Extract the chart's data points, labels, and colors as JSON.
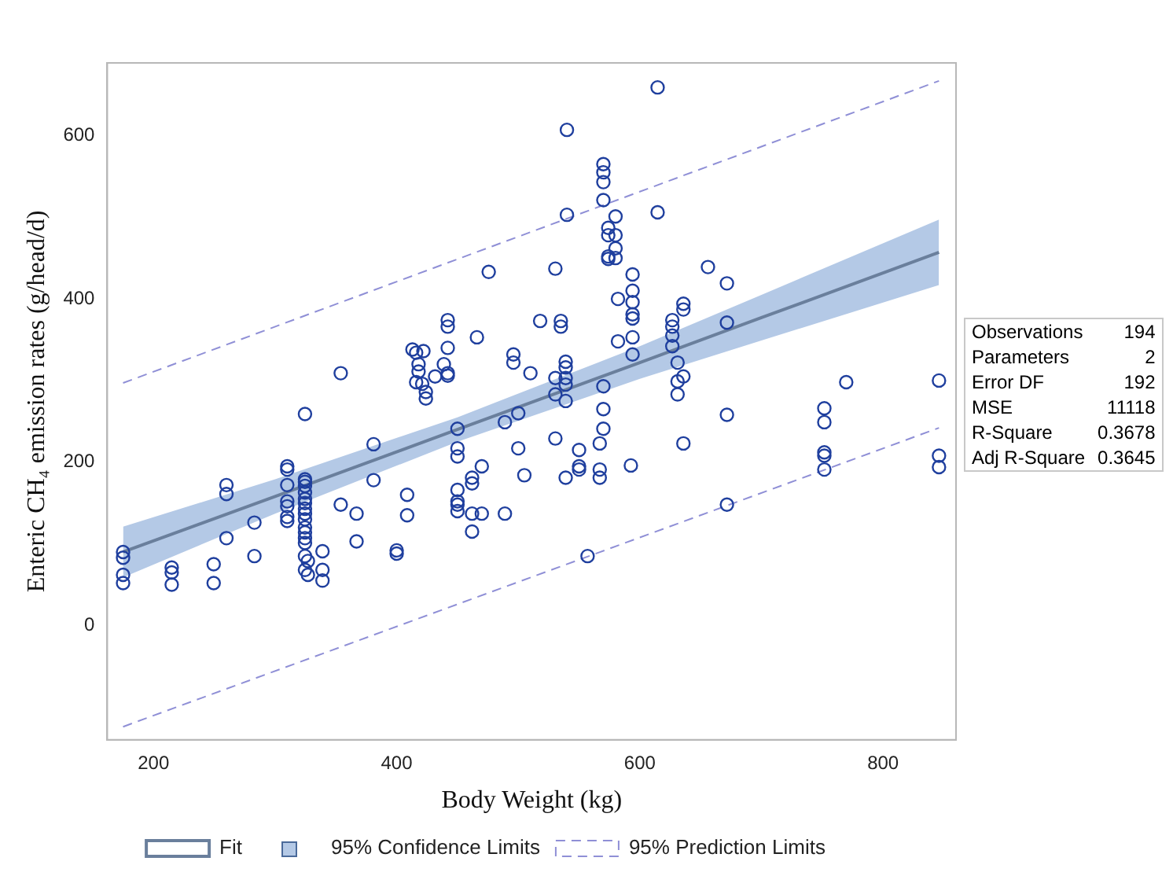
{
  "chart_data": {
    "type": "scatter",
    "xlabel": "Body Weight (kg)",
    "ylabel": "Enteric CH₄ emission rates (g/head/d)",
    "xlim": [
      162,
      860
    ],
    "ylim": [
      -140,
      689
    ],
    "xticks": [
      200,
      400,
      600,
      800
    ],
    "yticks": [
      0,
      200,
      400,
      600
    ],
    "grid": false,
    "legend": "bottom",
    "marker": "circle",
    "series": [
      {
        "color": "#1f3f9e",
        "x": [
          175,
          175,
          175,
          175,
          215,
          215,
          215,
          249.5,
          249.5,
          260,
          260,
          260,
          283,
          283,
          310,
          310,
          310,
          310,
          310,
          310,
          310,
          324.6,
          324.6,
          324.6,
          324.6,
          324.6,
          324.6,
          324.6,
          324.6,
          324.6,
          324.6,
          324.6,
          324.6,
          324.6,
          324.6,
          324.6,
          324.6,
          327,
          327,
          339,
          339,
          339,
          354,
          354,
          367,
          367,
          381,
          381,
          400,
          400,
          408.6,
          408.6,
          413,
          416,
          422,
          418,
          418,
          416,
          421,
          424,
          424,
          431.6,
          438.8,
          442,
          442,
          442,
          442,
          442,
          450,
          450,
          450,
          450,
          450,
          450,
          450,
          462,
          462,
          462,
          462,
          466,
          470,
          470,
          475.7,
          489,
          489,
          496,
          496,
          500,
          500,
          505,
          510,
          518,
          530.5,
          530.5,
          530.5,
          530.5,
          535,
          535,
          539,
          539,
          539,
          539,
          539,
          539,
          540,
          540,
          550,
          550,
          550,
          557,
          567,
          567,
          567,
          570,
          570,
          570,
          570,
          570,
          570,
          570,
          574,
          574,
          574,
          574,
          580,
          580,
          580,
          580,
          582,
          582,
          592.6,
          594,
          594,
          594,
          594,
          594,
          594,
          594,
          614.6,
          614.6,
          626.7,
          626.7,
          626.7,
          626.7,
          631,
          631,
          631,
          635.8,
          635.8,
          635.8,
          635.8,
          656,
          671.6,
          671.6,
          671.6,
          671.6,
          751.7,
          751.7,
          751.7,
          751.7,
          751.7,
          769.7,
          846,
          846,
          846
        ],
        "values": [
          90,
          83,
          62,
          52,
          71,
          65,
          50,
          75,
          52,
          172,
          161,
          107,
          126,
          85,
          195,
          191,
          172,
          152,
          146,
          133,
          128,
          259,
          179,
          176,
          171,
          163,
          155,
          150,
          143,
          137,
          130,
          120,
          114,
          107,
          101,
          85,
          68,
          79,
          62,
          91,
          68,
          55,
          309,
          148,
          137,
          103,
          222,
          178,
          92,
          88,
          160,
          135,
          338,
          334,
          336,
          320,
          311,
          298,
          296,
          286,
          278,
          305,
          320,
          374,
          366,
          340,
          309,
          306,
          241,
          217,
          207,
          166,
          152,
          148,
          140,
          181,
          174,
          137,
          115,
          353,
          195,
          137,
          433,
          249,
          137,
          332,
          322,
          260,
          217,
          184,
          309,
          373,
          437,
          303,
          283,
          229,
          373,
          366,
          323,
          316,
          303,
          295,
          275,
          181,
          607,
          503,
          215,
          195,
          191,
          85,
          223,
          191,
          181,
          565,
          555,
          543,
          521,
          293,
          265,
          241,
          487,
          478,
          452,
          449,
          501,
          478,
          462,
          450,
          400,
          348,
          196,
          430,
          410,
          396,
          381,
          376,
          353,
          332,
          659,
          506,
          374,
          366,
          355,
          342,
          322,
          299,
          283,
          394,
          387,
          305,
          223,
          439,
          419,
          371,
          258,
          148,
          266,
          249,
          212,
          208,
          191,
          298,
          300,
          208,
          194
        ]
      },
      {
        "type": "line",
        "name": "Fit",
        "color": "#6a7f9c",
        "line_style": "solid",
        "marker": "none",
        "x": [
          175,
          300,
          450,
          600,
          700,
          846
        ],
        "values": [
          90,
          158,
          240,
          322,
          377,
          457
        ],
        "lower": [
          59,
          137,
          225,
          302,
          349,
          417
        ],
        "upper": [
          121,
          179,
          255,
          342,
          405,
          497
        ]
      },
      {
        "type": "line",
        "name": "95% Prediction Limits",
        "color": "#8f8fd6",
        "line_style": "dashed",
        "marker": "none",
        "x": [
          175,
          846
        ],
        "values": [
          297,
          667
        ]
      },
      {
        "type": "line",
        "color": "#8f8fd6",
        "line_style": "dashed",
        "marker": "none",
        "x": [
          175,
          846
        ],
        "values": [
          -124,
          242
        ]
      }
    ],
    "annotations": [
      "95% Confidence Limits",
      "Observations 194",
      "Parameters 2",
      "Error DF 192",
      "MSE 11118",
      "R-Square 0.3678",
      "Adj R-Square 0.3645"
    ]
  }
}
